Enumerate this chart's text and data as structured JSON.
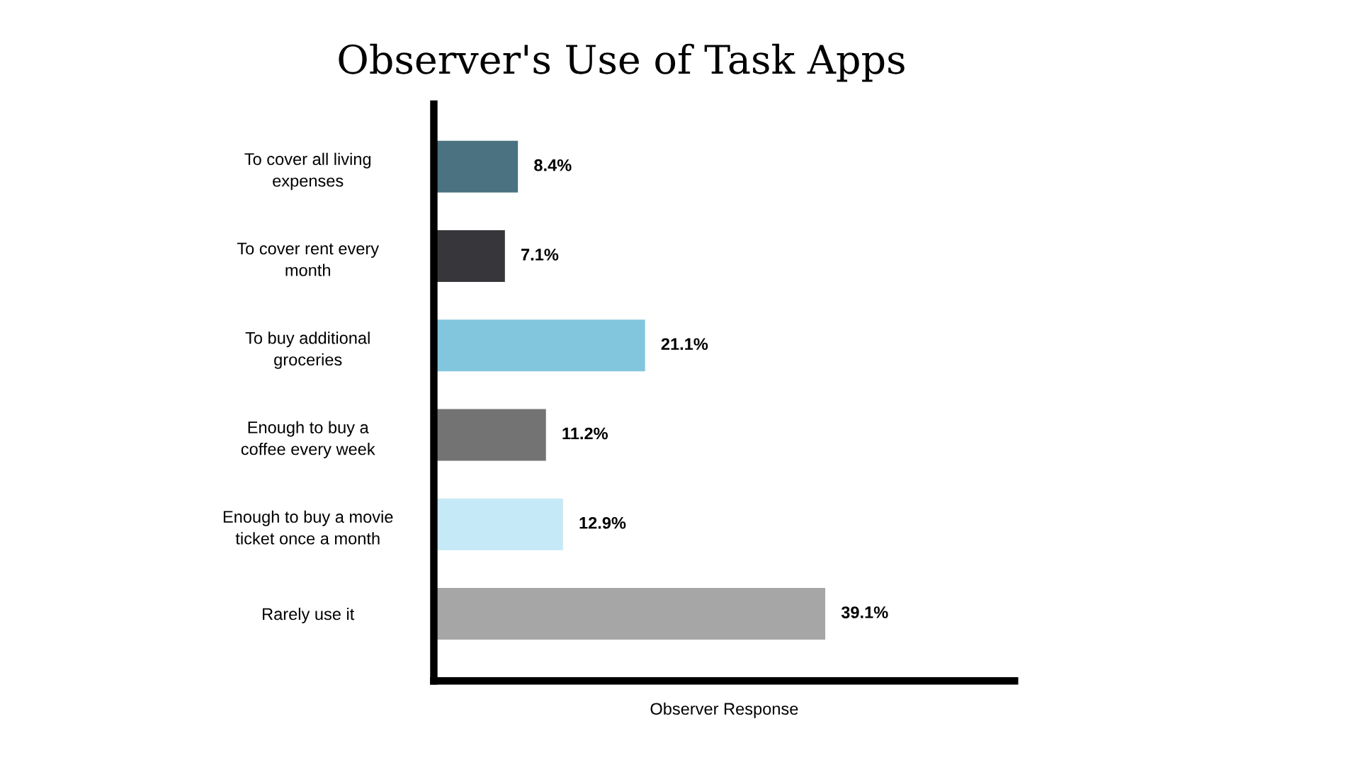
{
  "chart_data": {
    "type": "bar",
    "orientation": "horizontal",
    "title": "Observer's Use of Task Apps",
    "xlabel": "Observer Response",
    "categories": [
      "To cover all living\nexpenses",
      "To cover rent every\nmonth",
      "To buy additional\ngroceries",
      "Enough to buy a\ncoffee every week",
      "Enough to buy a movie\nticket once a month",
      "Rarely use it"
    ],
    "values": [
      8.4,
      7.1,
      21.1,
      11.2,
      12.9,
      39.1
    ],
    "colors": [
      "#4a7280",
      "#37363b",
      "#82c6dd",
      "#737373",
      "#c6e9f7",
      "#a6a6a6"
    ],
    "value_labels": [
      "8.4%",
      "7.1%",
      "21.1%",
      "11.2%",
      "12.9%",
      "39.1%"
    ],
    "tick_labels": "y"
  }
}
